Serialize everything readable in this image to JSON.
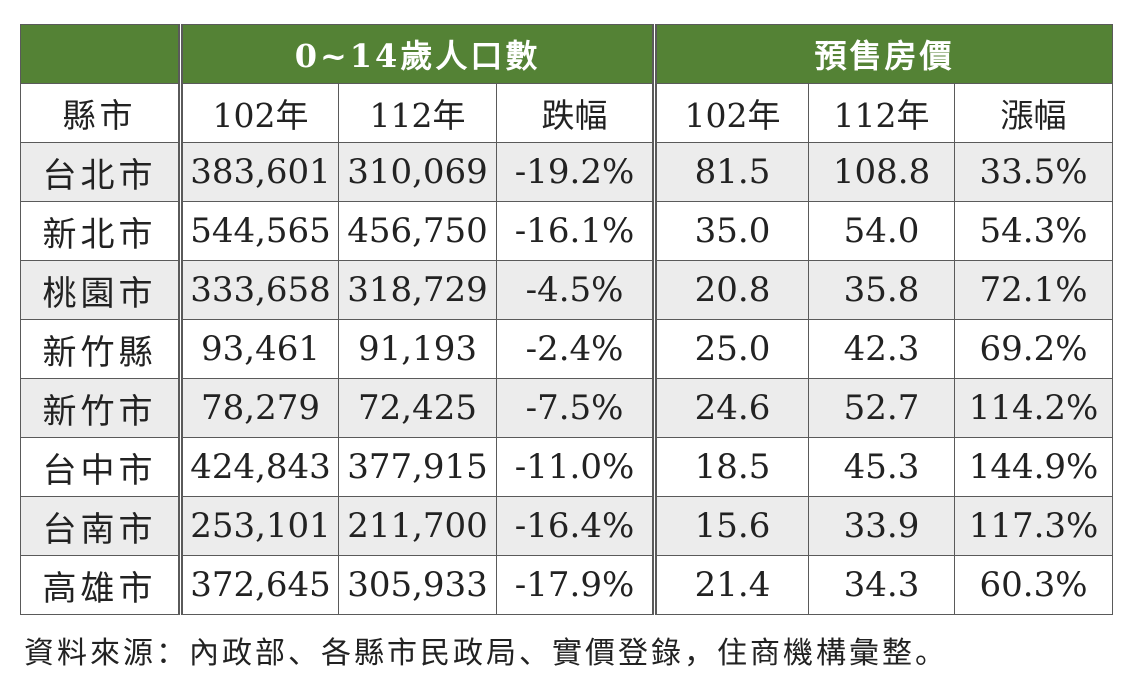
{
  "header": {
    "population_group": "0~14歲人口數",
    "price_group": "預售房價",
    "col_city": "縣市",
    "pop_y1": "102年",
    "pop_y2": "112年",
    "pop_change": "跌幅",
    "price_y1": "102年",
    "price_y2": "112年",
    "price_change": "漲幅"
  },
  "rows": [
    {
      "city": "台北市",
      "pop102": "383,601",
      "pop112": "310,069",
      "pop_chg": "-19.2%",
      "price102": "81.5",
      "price112": "108.8",
      "price_chg": "33.5%"
    },
    {
      "city": "新北市",
      "pop102": "544,565",
      "pop112": "456,750",
      "pop_chg": "-16.1%",
      "price102": "35.0",
      "price112": "54.0",
      "price_chg": "54.3%"
    },
    {
      "city": "桃園市",
      "pop102": "333,658",
      "pop112": "318,729",
      "pop_chg": "-4.5%",
      "price102": "20.8",
      "price112": "35.8",
      "price_chg": "72.1%"
    },
    {
      "city": "新竹縣",
      "pop102": "93,461",
      "pop112": "91,193",
      "pop_chg": "-2.4%",
      "price102": "25.0",
      "price112": "42.3",
      "price_chg": "69.2%"
    },
    {
      "city": "新竹市",
      "pop102": "78,279",
      "pop112": "72,425",
      "pop_chg": "-7.5%",
      "price102": "24.6",
      "price112": "52.7",
      "price_chg": "114.2%"
    },
    {
      "city": "台中市",
      "pop102": "424,843",
      "pop112": "377,915",
      "pop_chg": "-11.0%",
      "price102": "18.5",
      "price112": "45.3",
      "price_chg": "144.9%"
    },
    {
      "city": "台南市",
      "pop102": "253,101",
      "pop112": "211,700",
      "pop_chg": "-16.4%",
      "price102": "15.6",
      "price112": "33.9",
      "price_chg": "117.3%"
    },
    {
      "city": "高雄市",
      "pop102": "372,645",
      "pop112": "305,933",
      "pop_chg": "-17.9%",
      "price102": "21.4",
      "price112": "34.3",
      "price_chg": "60.3%"
    }
  ],
  "source": "資料來源：內政部、各縣市民政局、實價登錄，住商機構彙整。",
  "colors": {
    "header_green": "#548235",
    "header_text": "#ffffff",
    "row_shade": "#ececec",
    "border": "#5a5a5a"
  }
}
